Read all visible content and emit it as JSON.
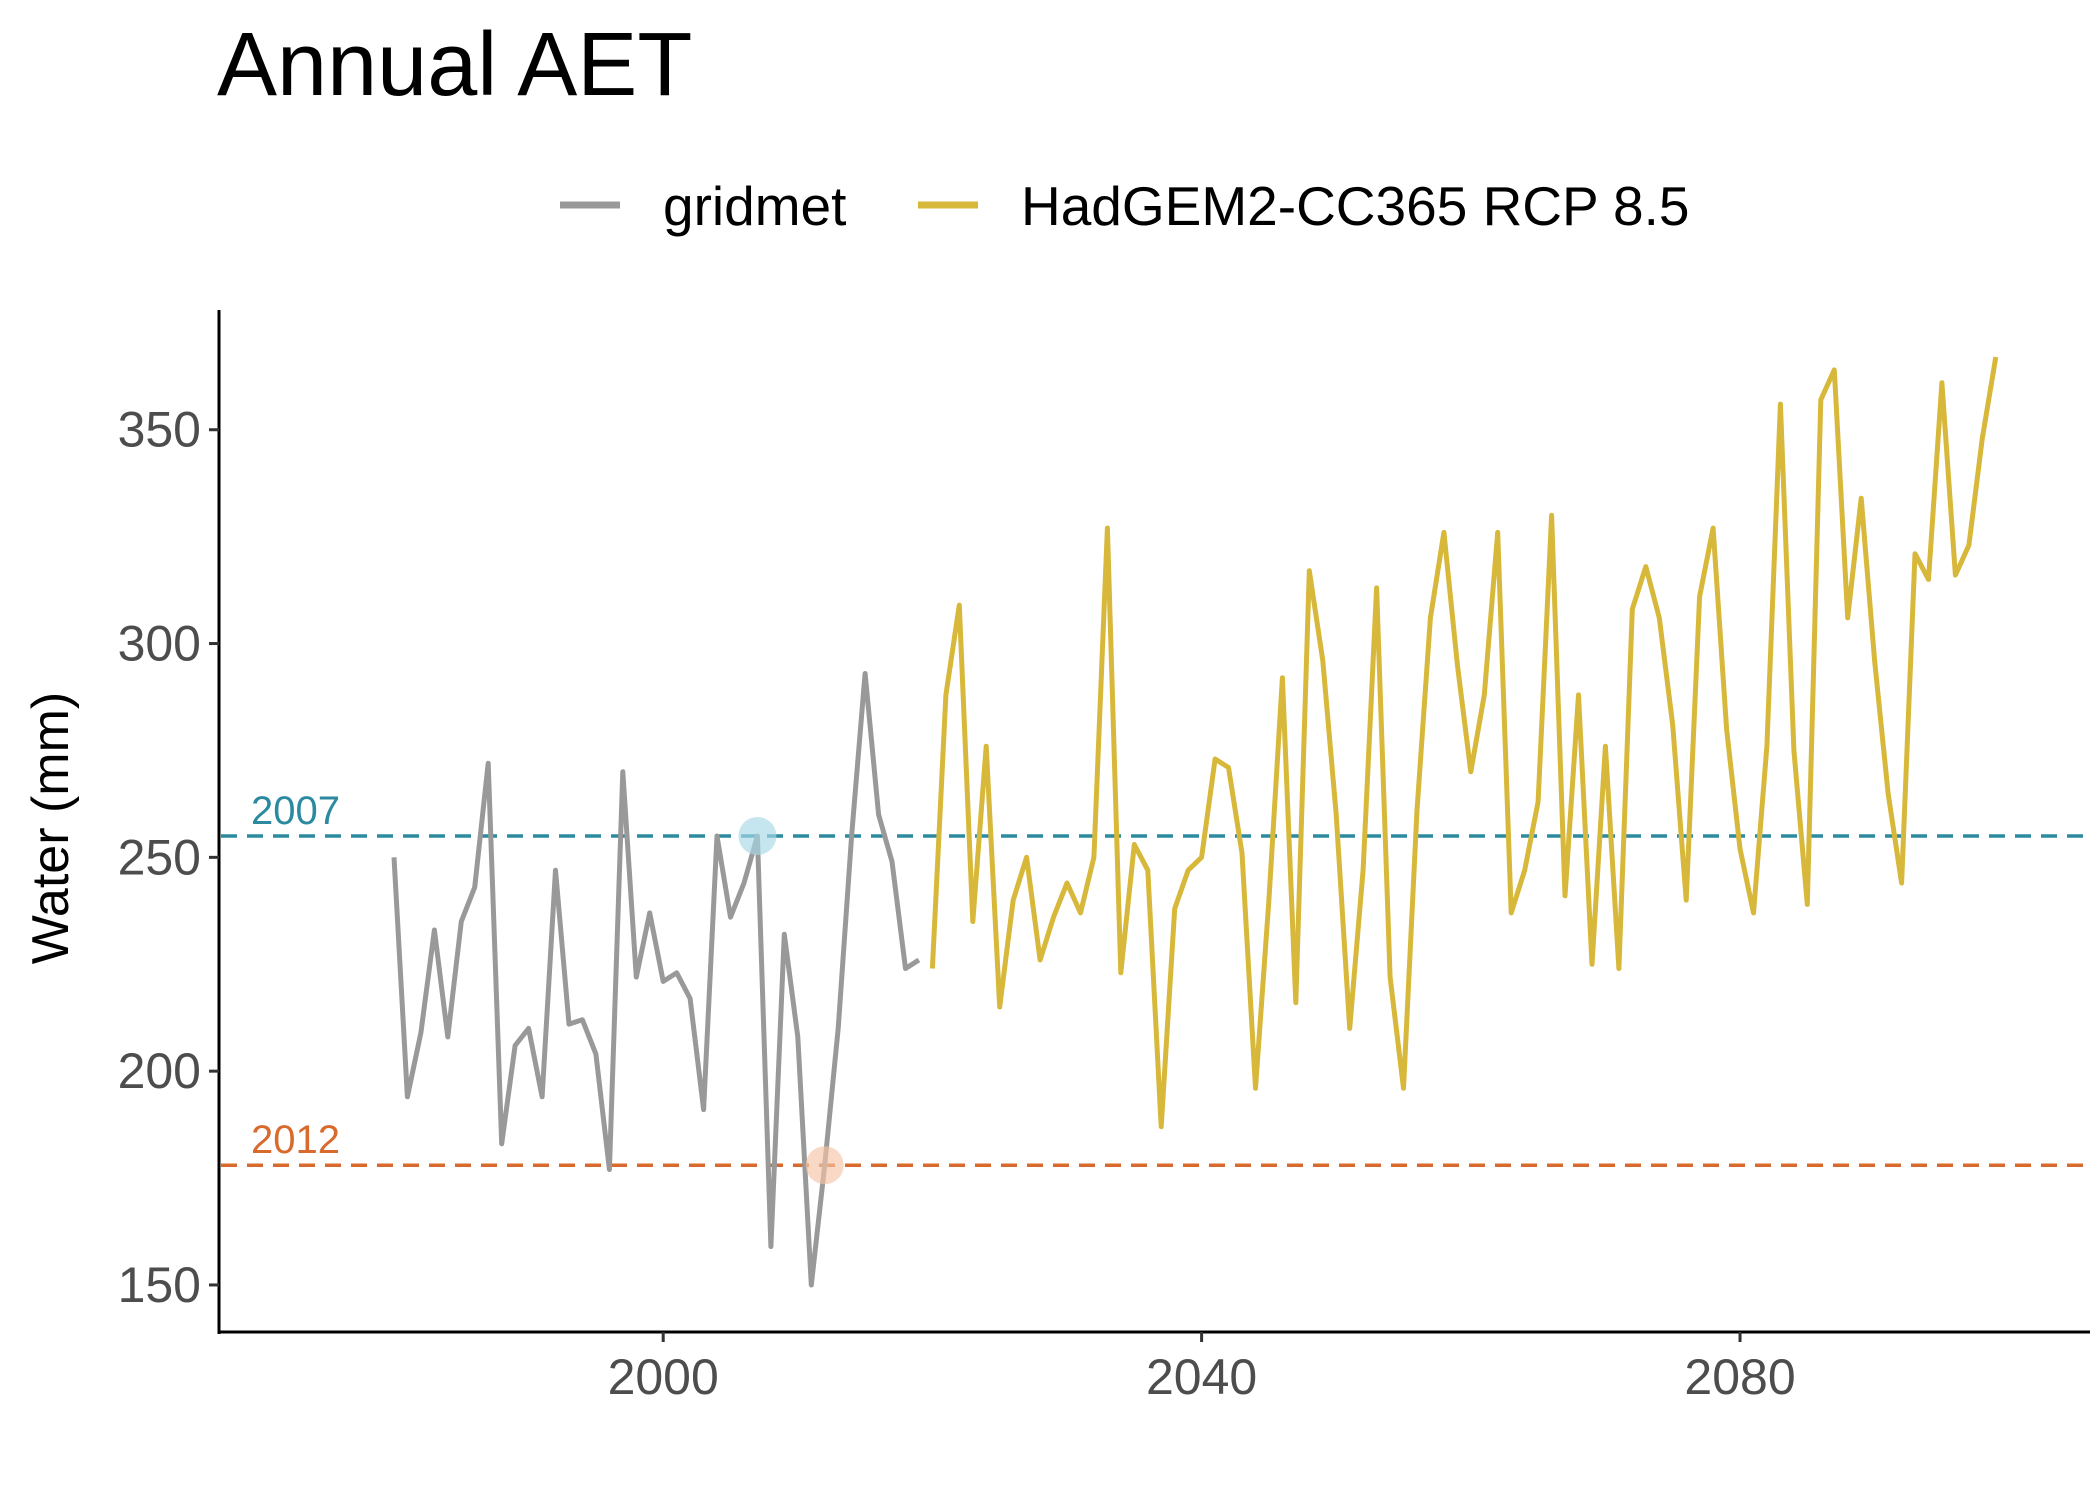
{
  "chart_data": {
    "type": "line",
    "title": "Annual AET",
    "xlabel": "",
    "ylabel": "Water (mm)",
    "xlim": [
      1967,
      2106
    ],
    "ylim": [
      139,
      378
    ],
    "x_ticks": [
      2000,
      2040,
      2080
    ],
    "x_tick_labels": [
      "2000",
      "2040",
      "2080"
    ],
    "y_ticks": [
      150,
      200,
      250,
      300,
      350
    ],
    "y_tick_labels": [
      "150",
      "200",
      "250",
      "300",
      "350"
    ],
    "grid": false,
    "legend_position": "top",
    "series": [
      {
        "name": "gridmet",
        "color": "#999999",
        "x": [
          1980,
          1981,
          1982,
          1983,
          1984,
          1985,
          1986,
          1987,
          1988,
          1989,
          1990,
          1991,
          1992,
          1993,
          1994,
          1995,
          1996,
          1997,
          1998,
          1999,
          2000,
          2001,
          2002,
          2003,
          2004,
          2005,
          2006,
          2007,
          2008,
          2009,
          2010,
          2011,
          2012,
          2013,
          2014,
          2015,
          2016,
          2017,
          2018,
          2019
        ],
        "values": [
          250,
          194,
          209,
          233,
          208,
          235,
          243,
          272,
          183,
          206,
          210,
          194,
          247,
          211,
          212,
          204,
          177,
          270,
          222,
          237,
          221,
          223,
          217,
          191,
          255,
          236,
          244,
          255,
          159,
          232,
          208,
          150,
          178,
          210,
          255,
          293,
          260,
          249,
          224,
          226
        ]
      },
      {
        "name": "HadGEM2-CC365 RCP 8.5",
        "color": "#d7b83a",
        "x": [
          2020,
          2021,
          2022,
          2023,
          2024,
          2025,
          2026,
          2027,
          2028,
          2029,
          2030,
          2031,
          2032,
          2033,
          2034,
          2035,
          2036,
          2037,
          2038,
          2039,
          2040,
          2041,
          2042,
          2043,
          2044,
          2045,
          2046,
          2047,
          2048,
          2049,
          2050,
          2051,
          2052,
          2053,
          2054,
          2055,
          2056,
          2057,
          2058,
          2059,
          2060,
          2061,
          2062,
          2063,
          2064,
          2065,
          2066,
          2067,
          2068,
          2069,
          2070,
          2071,
          2072,
          2073,
          2074,
          2075,
          2076,
          2077,
          2078,
          2079,
          2080,
          2081,
          2082,
          2083,
          2084,
          2085,
          2086,
          2087,
          2088,
          2089,
          2090,
          2091,
          2092,
          2093,
          2094,
          2095,
          2096,
          2097,
          2098,
          2099
        ],
        "values": [
          224,
          288,
          309,
          235,
          276,
          215,
          240,
          250,
          226,
          236,
          244,
          237,
          250,
          327,
          223,
          253,
          247,
          187,
          238,
          247,
          250,
          273,
          271,
          251,
          196,
          240,
          292,
          216,
          317,
          296,
          260,
          210,
          247,
          313,
          222,
          196,
          261,
          306,
          326,
          295,
          270,
          288,
          326,
          237,
          247,
          263,
          330,
          241,
          288,
          225,
          276,
          224,
          308,
          318,
          306,
          281,
          240,
          311,
          327,
          280,
          252,
          237,
          276,
          356,
          275,
          239,
          357,
          364,
          306,
          334,
          296,
          265,
          244,
          321,
          315,
          361,
          316,
          323,
          348,
          367
        ]
      }
    ],
    "reference_lines": [
      {
        "label": "2007",
        "year": 2007,
        "y": 255,
        "color": "#2b8aa0",
        "marker_color": "#a8d8e6"
      },
      {
        "label": "2012",
        "year": 2012,
        "y": 178,
        "color": "#d86a2e",
        "marker_color": "#f6c5a8"
      }
    ]
  }
}
